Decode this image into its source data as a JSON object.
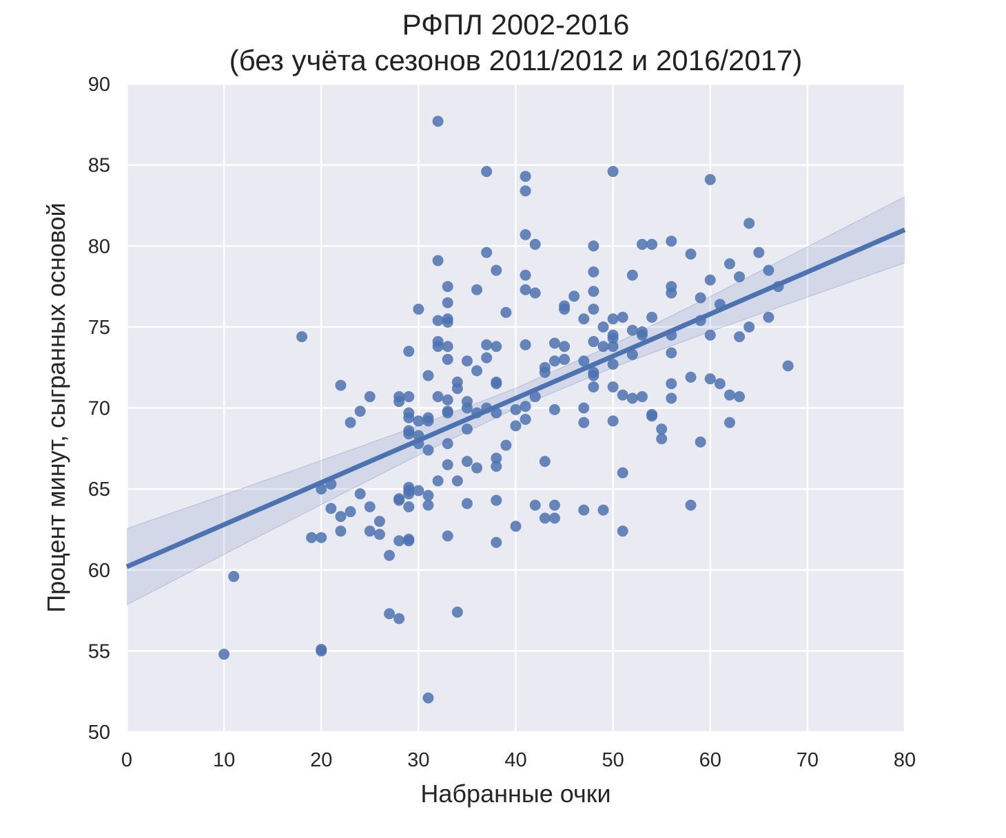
{
  "chart_data": {
    "type": "scatter",
    "title": "РФПЛ 2002-2016",
    "subtitle": "(без учёта сезонов 2011/2012 и 2016/2017)",
    "xlabel": "Набранные очки",
    "ylabel": "Процент минут, сыгранных основой",
    "xlim": [
      0,
      80
    ],
    "ylim": [
      50,
      90
    ],
    "xticks": [
      0,
      10,
      20,
      30,
      40,
      50,
      60,
      70,
      80
    ],
    "yticks": [
      50,
      55,
      60,
      65,
      70,
      75,
      80,
      85,
      90
    ],
    "grid": true,
    "colors": {
      "point": "#4C72B0",
      "line": "#4C72B0",
      "band": "#4C72B0",
      "background": "#EAEAF2",
      "grid": "#FFFFFF"
    },
    "regression": {
      "intercept": 60.2,
      "slope": 0.26
    },
    "ci_band": {
      "x": [
        0,
        10,
        20,
        30,
        40,
        50,
        60,
        70,
        80
      ],
      "lower": [
        57.85,
        60.96,
        64.04,
        67.09,
        69.98,
        72.5,
        74.72,
        76.85,
        78.96
      ],
      "upper": [
        62.55,
        64.64,
        66.76,
        68.91,
        71.22,
        73.9,
        76.88,
        79.95,
        83.04
      ]
    },
    "points": [
      [
        32,
        87.7
      ],
      [
        37,
        84.6
      ],
      [
        41,
        84.3
      ],
      [
        41,
        83.4
      ],
      [
        50,
        84.6
      ],
      [
        60,
        84.1
      ],
      [
        64,
        81.4
      ],
      [
        41,
        80.7
      ],
      [
        42,
        80.1
      ],
      [
        48,
        80.0
      ],
      [
        53,
        80.1
      ],
      [
        54,
        80.1
      ],
      [
        56,
        80.3
      ],
      [
        58,
        79.5
      ],
      [
        65,
        79.6
      ],
      [
        32,
        79.1
      ],
      [
        37,
        79.6
      ],
      [
        38,
        78.5
      ],
      [
        41,
        78.2
      ],
      [
        48,
        78.4
      ],
      [
        52,
        78.2
      ],
      [
        62,
        78.9
      ],
      [
        63,
        78.1
      ],
      [
        60,
        77.9
      ],
      [
        66,
        78.5
      ],
      [
        33,
        77.5
      ],
      [
        36,
        77.3
      ],
      [
        41,
        77.3
      ],
      [
        42,
        77.1
      ],
      [
        46,
        76.9
      ],
      [
        48,
        77.2
      ],
      [
        56,
        77.5
      ],
      [
        56,
        77.1
      ],
      [
        59,
        76.8
      ],
      [
        67,
        77.5
      ],
      [
        61,
        76.4
      ],
      [
        33,
        76.5
      ],
      [
        45,
        76.3
      ],
      [
        45,
        76.1
      ],
      [
        48,
        76.1
      ],
      [
        30,
        76.1
      ],
      [
        39,
        75.9
      ],
      [
        32,
        75.4
      ],
      [
        33,
        75.5
      ],
      [
        33,
        75.3
      ],
      [
        47,
        75.5
      ],
      [
        50,
        75.5
      ],
      [
        51,
        75.6
      ],
      [
        54,
        75.6
      ],
      [
        59,
        75.4
      ],
      [
        66,
        75.6
      ],
      [
        18,
        74.4
      ],
      [
        49,
        75.0
      ],
      [
        52,
        74.8
      ],
      [
        53,
        74.7
      ],
      [
        53,
        74.5
      ],
      [
        50,
        74.5
      ],
      [
        50,
        74.3
      ],
      [
        56,
        74.5
      ],
      [
        60,
        74.5
      ],
      [
        64,
        75.0
      ],
      [
        63,
        74.4
      ],
      [
        32,
        74.1
      ],
      [
        32,
        73.8
      ],
      [
        33,
        73.8
      ],
      [
        37,
        73.9
      ],
      [
        38,
        73.8
      ],
      [
        41,
        73.9
      ],
      [
        44,
        74.0
      ],
      [
        45,
        73.8
      ],
      [
        48,
        74.1
      ],
      [
        49,
        73.8
      ],
      [
        50,
        73.8
      ],
      [
        29,
        73.5
      ],
      [
        33,
        73.0
      ],
      [
        35,
        72.9
      ],
      [
        37,
        73.1
      ],
      [
        44,
        72.9
      ],
      [
        45,
        73.0
      ],
      [
        47,
        72.9
      ],
      [
        52,
        73.3
      ],
      [
        56,
        73.4
      ],
      [
        68,
        72.6
      ],
      [
        36,
        72.3
      ],
      [
        43,
        72.5
      ],
      [
        43,
        72.2
      ],
      [
        48,
        72.2
      ],
      [
        48,
        72.0
      ],
      [
        50,
        72.7
      ],
      [
        31,
        72.0
      ],
      [
        58,
        71.9
      ],
      [
        60,
        71.8
      ],
      [
        22,
        71.4
      ],
      [
        34,
        71.6
      ],
      [
        34,
        71.2
      ],
      [
        38,
        71.6
      ],
      [
        38,
        71.5
      ],
      [
        48,
        71.3
      ],
      [
        50,
        71.3
      ],
      [
        56,
        71.5
      ],
      [
        61,
        71.5
      ],
      [
        25,
        70.7
      ],
      [
        28,
        70.7
      ],
      [
        28,
        70.4
      ],
      [
        29,
        70.7
      ],
      [
        32,
        70.7
      ],
      [
        33,
        70.5
      ],
      [
        35,
        70.4
      ],
      [
        42,
        70.7
      ],
      [
        51,
        70.8
      ],
      [
        52,
        70.6
      ],
      [
        53,
        70.7
      ],
      [
        56,
        70.6
      ],
      [
        62,
        70.8
      ],
      [
        63,
        70.7
      ],
      [
        24,
        69.8
      ],
      [
        29,
        69.7
      ],
      [
        29,
        69.4
      ],
      [
        30,
        69.2
      ],
      [
        31,
        69.4
      ],
      [
        31,
        69.2
      ],
      [
        33,
        69.8
      ],
      [
        33,
        69.7
      ],
      [
        35,
        70.0
      ],
      [
        36,
        69.7
      ],
      [
        37,
        70.0
      ],
      [
        38,
        69.7
      ],
      [
        40,
        69.9
      ],
      [
        41,
        70.1
      ],
      [
        41,
        69.3
      ],
      [
        40,
        68.9
      ],
      [
        44,
        69.9
      ],
      [
        47,
        70.0
      ],
      [
        47,
        69.1
      ],
      [
        50,
        69.2
      ],
      [
        54,
        69.6
      ],
      [
        54,
        69.5
      ],
      [
        62,
        69.1
      ],
      [
        23,
        69.1
      ],
      [
        29,
        68.6
      ],
      [
        29,
        68.4
      ],
      [
        30,
        68.3
      ],
      [
        30,
        67.8
      ],
      [
        35,
        68.7
      ],
      [
        33,
        67.8
      ],
      [
        31,
        67.4
      ],
      [
        39,
        67.7
      ],
      [
        55,
        68.7
      ],
      [
        55,
        68.1
      ],
      [
        59,
        67.9
      ],
      [
        33,
        66.5
      ],
      [
        35,
        66.7
      ],
      [
        36,
        66.3
      ],
      [
        38,
        66.9
      ],
      [
        38,
        66.4
      ],
      [
        43,
        66.7
      ],
      [
        51,
        66.0
      ],
      [
        32,
        65.5
      ],
      [
        34,
        65.5
      ],
      [
        20,
        65.0
      ],
      [
        21,
        65.3
      ],
      [
        29,
        65.1
      ],
      [
        29,
        64.9
      ],
      [
        29,
        64.7
      ],
      [
        30,
        64.9
      ],
      [
        24,
        64.7
      ],
      [
        31,
        64.6
      ],
      [
        31,
        64.0
      ],
      [
        28,
        64.4
      ],
      [
        28,
        64.3
      ],
      [
        35,
        64.1
      ],
      [
        38,
        64.3
      ],
      [
        42,
        64.0
      ],
      [
        44,
        64.0
      ],
      [
        58,
        64.0
      ],
      [
        21,
        63.8
      ],
      [
        23,
        63.6
      ],
      [
        25,
        63.9
      ],
      [
        29,
        63.9
      ],
      [
        47,
        63.7
      ],
      [
        49,
        63.7
      ],
      [
        22,
        63.3
      ],
      [
        43,
        63.2
      ],
      [
        44,
        63.2
      ],
      [
        26,
        63.0
      ],
      [
        22,
        62.4
      ],
      [
        25,
        62.4
      ],
      [
        26,
        62.2
      ],
      [
        40,
        62.7
      ],
      [
        51,
        62.4
      ],
      [
        19,
        62.0
      ],
      [
        20,
        62.0
      ],
      [
        33,
        62.1
      ],
      [
        28,
        61.8
      ],
      [
        29,
        61.9
      ],
      [
        29,
        61.8
      ],
      [
        38,
        61.7
      ],
      [
        27,
        60.9
      ],
      [
        11,
        59.6
      ],
      [
        27,
        57.3
      ],
      [
        28,
        57.0
      ],
      [
        34,
        57.4
      ],
      [
        10,
        54.8
      ],
      [
        20,
        55.1
      ],
      [
        20,
        55.0
      ],
      [
        31,
        52.1
      ]
    ]
  }
}
